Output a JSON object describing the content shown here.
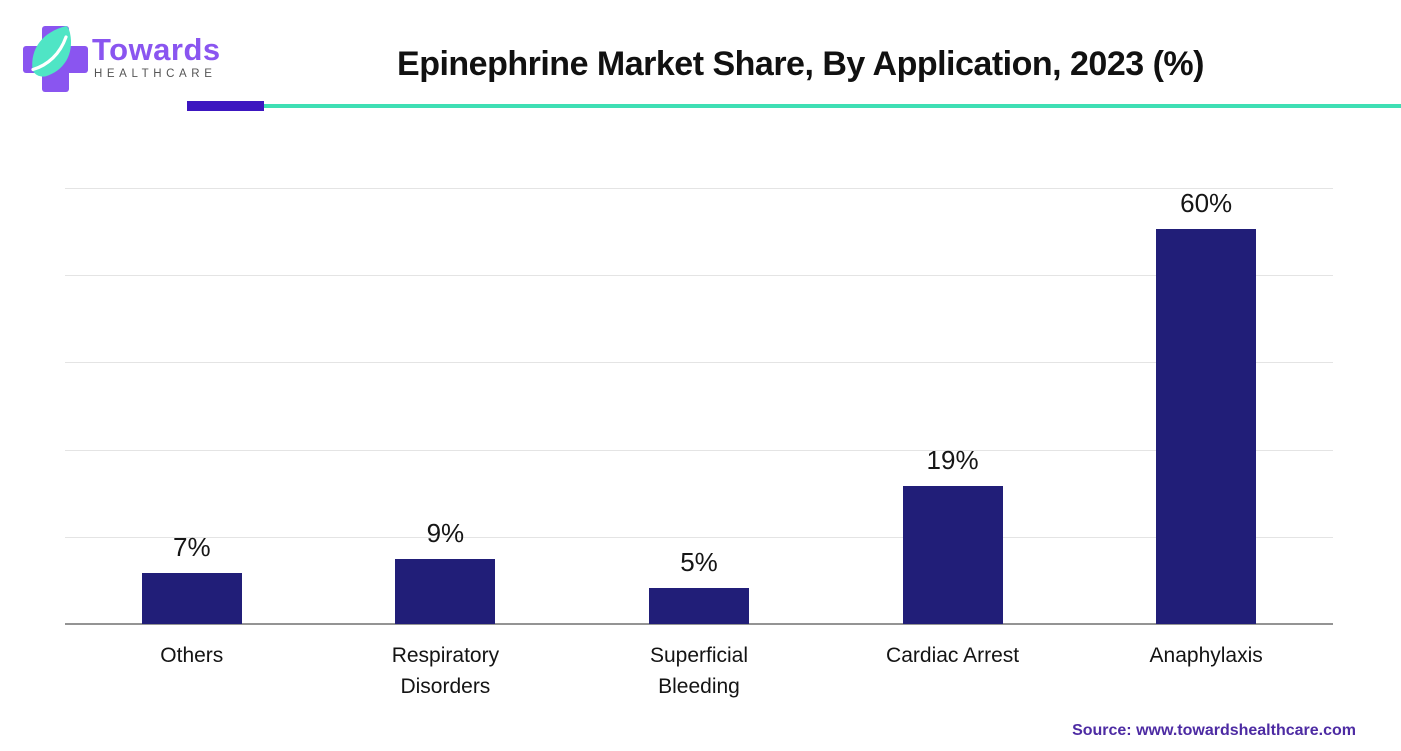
{
  "header": {
    "logo": {
      "brand": "Towards",
      "subtitle": "HEALTHCARE"
    },
    "title": "Epinephrine Market Share, By Application, 2023 (%)"
  },
  "chart_data": {
    "type": "bar",
    "title": "Epinephrine Market Share, By Application, 2023 (%)",
    "categories": [
      "Others",
      "Respiratory Disorders",
      "Superficial Bleeding",
      "Cardiac Arrest",
      "Anaphylaxis"
    ],
    "values": [
      7,
      9,
      5,
      19,
      60
    ],
    "value_labels": [
      "7%",
      "9%",
      "5%",
      "19%",
      "60%"
    ],
    "unit": "%",
    "xlabel": "",
    "ylabel": "",
    "ylim": [
      0,
      60
    ],
    "gridline_step": 12,
    "grid": true,
    "legend": false,
    "bar_color": "#211E78",
    "gridline_color": "#e4e4e4",
    "axis_color": "#949494"
  },
  "footer": {
    "source": "Source: www.towardshealthcare.com"
  },
  "colors": {
    "bar_navy": "#211E78",
    "accent_purple": "#3C16C0",
    "accent_teal": "#3EDFB4",
    "logo_purple": "#8A55F0",
    "leaf_mint": "#4FE5C5",
    "subtitle_gray": "#555555",
    "title_black": "#111111",
    "source_purple": "#4D2BA3"
  }
}
